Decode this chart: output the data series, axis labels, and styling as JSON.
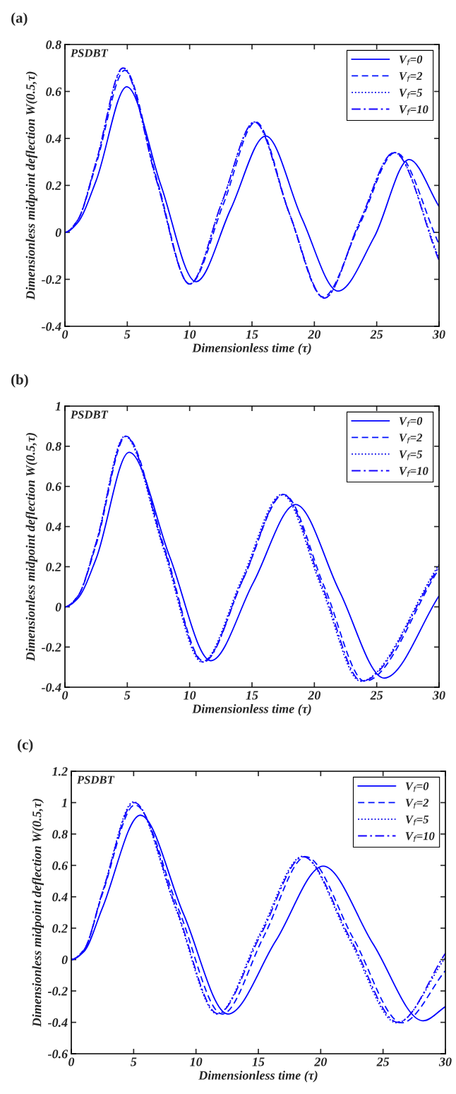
{
  "chart_data": [
    {
      "type": "line",
      "title": "(a)",
      "xlabel": "Dimensionless time (τ)",
      "ylabel": "Dimensionless midpoint deflection W(0.5,τ)",
      "annotations": [
        "PSDBT"
      ],
      "xlim": [
        0,
        30
      ],
      "xticks": [
        0,
        5,
        10,
        15,
        20,
        25,
        30
      ],
      "ylim": [
        -0.4,
        0.8
      ],
      "yticks": [
        -0.4,
        -0.2,
        0,
        0.2,
        0.4,
        0.6,
        0.8
      ],
      "grid": false,
      "legend": "top right",
      "series": [
        {
          "name": "V$_{f}$=0",
          "color": "#0000ff",
          "line_style": "solid",
          "x": [
            0,
            1,
            2.5,
            4.96,
            7.7,
            10.5,
            13.3,
            16.1,
            19.0,
            21.9,
            24.8,
            27.6,
            30
          ],
          "values": [
            0,
            0.04,
            0.22,
            0.62,
            0.2,
            -0.21,
            0.1,
            0.41,
            0.06,
            -0.25,
            -0.02,
            0.31,
            0.11
          ]
        },
        {
          "name": "V$_{f}$=2",
          "color": "#0010ff",
          "line_style": "dashed",
          "x": [
            0,
            1,
            2.5,
            4.8,
            7.4,
            10.0,
            12.7,
            15.3,
            18.0,
            20.7,
            23.6,
            26.5,
            30
          ],
          "values": [
            0,
            0.05,
            0.29,
            0.69,
            0.22,
            -0.22,
            0.12,
            0.47,
            0.08,
            -0.275,
            0.03,
            0.34,
            -0.05
          ]
        },
        {
          "name": "V$_{f}$=5",
          "color": "#0000e8",
          "line_style": "dotted",
          "x": [
            0,
            1,
            2.5,
            4.7,
            7.35,
            10.0,
            12.6,
            15.2,
            18.0,
            20.8,
            23.6,
            26.4,
            30
          ],
          "values": [
            0,
            0.05,
            0.3,
            0.7,
            0.22,
            -0.22,
            0.13,
            0.47,
            0.08,
            -0.28,
            0.04,
            0.34,
            -0.11
          ]
        },
        {
          "name": "V$_{f}$=10",
          "color": "#1400ff",
          "line_style": "dashdot",
          "x": [
            0,
            1,
            2.5,
            4.65,
            7.35,
            10.0,
            12.6,
            15.2,
            18.0,
            20.8,
            23.6,
            26.4,
            30
          ],
          "values": [
            0,
            0.05,
            0.3,
            0.7,
            0.22,
            -0.22,
            0.13,
            0.47,
            0.08,
            -0.28,
            0.04,
            0.34,
            -0.12
          ]
        }
      ]
    },
    {
      "type": "line",
      "title": "(b)",
      "xlabel": "Dimensionless time (τ)",
      "ylabel": "Dimensionless midpoint deflection W(0.5,τ)",
      "annotations": [
        "PSDBT"
      ],
      "xlim": [
        0,
        30
      ],
      "xticks": [
        0,
        5,
        10,
        15,
        20,
        25,
        30
      ],
      "ylim": [
        -0.4,
        1
      ],
      "yticks": [
        -0.4,
        -0.2,
        0,
        0.2,
        0.4,
        0.6,
        0.8,
        1
      ],
      "grid": false,
      "legend": "top right",
      "series": [
        {
          "name": "V$_{f}$=0",
          "color": "#0000ff",
          "line_style": "solid",
          "x": [
            0,
            1,
            2.5,
            5.15,
            8.4,
            11.7,
            15.1,
            18.5,
            22.0,
            25.6,
            30
          ],
          "values": [
            0,
            0.04,
            0.24,
            0.77,
            0.25,
            -0.268,
            0.12,
            0.51,
            0.08,
            -0.355,
            0.055
          ]
        },
        {
          "name": "V$_{f}$=2",
          "color": "#0010ff",
          "line_style": "dashed",
          "x": [
            0,
            1,
            2.5,
            4.9,
            8.0,
            11.1,
            14.3,
            17.55,
            20.8,
            24.05,
            30
          ],
          "values": [
            0,
            0.05,
            0.31,
            0.85,
            0.29,
            -0.27,
            0.14,
            0.56,
            0.1,
            -0.37,
            0.19
          ]
        },
        {
          "name": "V$_{f}$=5",
          "color": "#0000e8",
          "line_style": "dotted",
          "x": [
            0,
            1,
            2.5,
            4.8,
            7.9,
            11.0,
            14.2,
            17.4,
            20.55,
            23.7,
            30
          ],
          "values": [
            0,
            0.05,
            0.32,
            0.85,
            0.29,
            -0.275,
            0.14,
            0.56,
            0.1,
            -0.37,
            0.21
          ]
        },
        {
          "name": "V$_{f}$=10",
          "color": "#1400ff",
          "line_style": "dashdot",
          "x": [
            0,
            1,
            2.5,
            4.85,
            7.95,
            11.1,
            14.3,
            17.5,
            20.65,
            23.8,
            30
          ],
          "values": [
            0,
            0.05,
            0.32,
            0.85,
            0.29,
            -0.275,
            0.14,
            0.56,
            0.1,
            -0.37,
            0.2
          ]
        }
      ]
    },
    {
      "type": "line",
      "title": "(c)",
      "xlabel": "Dimensionless time (τ)",
      "ylabel": "Dimensionless midpoint deflection W(0.5,τ)",
      "annotations": [
        "PSDBT"
      ],
      "xlim": [
        0,
        30
      ],
      "xticks": [
        0,
        5,
        10,
        15,
        20,
        25,
        30
      ],
      "ylim": [
        -0.6,
        1.2
      ],
      "yticks": [
        -0.6,
        -0.4,
        -0.2,
        0,
        0.2,
        0.4,
        0.6,
        0.8,
        1,
        1.2
      ],
      "grid": false,
      "legend": "top right",
      "series": [
        {
          "name": "V$_{f}$=0",
          "color": "#0000ff",
          "line_style": "solid",
          "x": [
            0,
            1,
            2.5,
            5.54,
            9.0,
            12.55,
            16.4,
            20.2,
            24.2,
            28.2,
            30
          ],
          "values": [
            0,
            0.05,
            0.33,
            0.92,
            0.29,
            -0.347,
            0.12,
            0.595,
            0.1,
            -0.39,
            -0.3
          ]
        },
        {
          "name": "V$_{f}$=2",
          "color": "#0010ff",
          "line_style": "dashed",
          "x": [
            0,
            1,
            2.5,
            5.1,
            8.6,
            12.1,
            15.45,
            18.8,
            22.65,
            26.5,
            30
          ],
          "values": [
            0,
            0.06,
            0.42,
            0.985,
            0.32,
            -0.347,
            0.15,
            0.656,
            0.13,
            -0.403,
            -0.07
          ]
        },
        {
          "name": "V$_{f}$=5",
          "color": "#0000e8",
          "line_style": "dotted",
          "x": [
            0,
            1,
            2.5,
            5.0,
            8.35,
            11.7,
            15.1,
            18.55,
            22.3,
            26.1,
            30
          ],
          "values": [
            0,
            0.06,
            0.43,
            1.005,
            0.33,
            -0.347,
            0.16,
            0.658,
            0.13,
            -0.403,
            0.013
          ]
        },
        {
          "name": "V$_{f}$=10",
          "color": "#1400ff",
          "line_style": "dashdot",
          "x": [
            0,
            1,
            2.5,
            5.05,
            8.4,
            11.75,
            15.2,
            18.6,
            22.4,
            26.2,
            30
          ],
          "values": [
            0,
            0.06,
            0.43,
            1.0,
            0.33,
            -0.345,
            0.16,
            0.655,
            0.13,
            -0.4,
            0.04
          ]
        }
      ]
    }
  ]
}
